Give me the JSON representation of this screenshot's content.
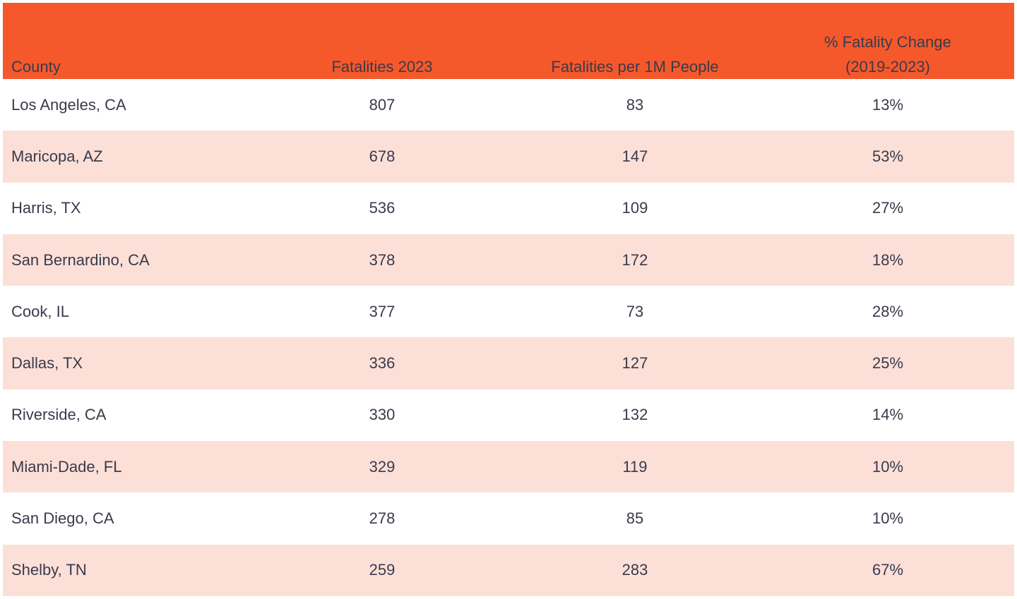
{
  "colors": {
    "header_bg": "#F5592B",
    "row_bg": "#FFFFFF",
    "row_alt_bg": "#FCE0D8",
    "text": "#3A3A4C"
  },
  "chart_data": {
    "type": "table",
    "columns": [
      "County",
      "Fatalities 2023",
      "Fatalities per 1M People",
      "% Fatality Change (2019-2023)"
    ],
    "rows": [
      {
        "county": "Los Angeles, CA",
        "fatalities_2023": 807,
        "per_1m": 83,
        "pct_change": "13%"
      },
      {
        "county": "Maricopa, AZ",
        "fatalities_2023": 678,
        "per_1m": 147,
        "pct_change": "53%"
      },
      {
        "county": "Harris, TX",
        "fatalities_2023": 536,
        "per_1m": 109,
        "pct_change": "27%"
      },
      {
        "county": "San Bernardino, CA",
        "fatalities_2023": 378,
        "per_1m": 172,
        "pct_change": "18%"
      },
      {
        "county": "Cook, IL",
        "fatalities_2023": 377,
        "per_1m": 73,
        "pct_change": "28%"
      },
      {
        "county": "Dallas, TX",
        "fatalities_2023": 336,
        "per_1m": 127,
        "pct_change": "25%"
      },
      {
        "county": "Riverside, CA",
        "fatalities_2023": 330,
        "per_1m": 132,
        "pct_change": "14%"
      },
      {
        "county": "Miami-Dade, FL",
        "fatalities_2023": 329,
        "per_1m": 119,
        "pct_change": "10%"
      },
      {
        "county": "San Diego, CA",
        "fatalities_2023": 278,
        "per_1m": 85,
        "pct_change": "10%"
      },
      {
        "county": "Shelby, TN",
        "fatalities_2023": 259,
        "per_1m": 283,
        "pct_change": "67%"
      }
    ]
  }
}
